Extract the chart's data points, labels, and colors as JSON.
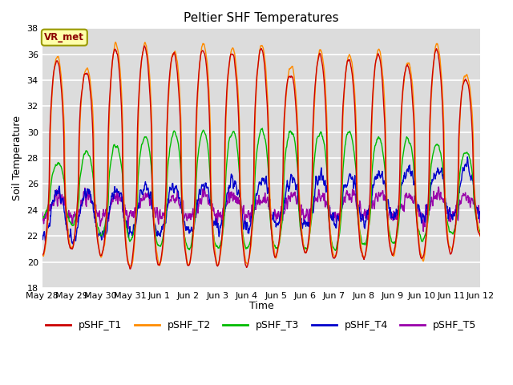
{
  "title": "Peltier SHF Temperatures",
  "ylabel": "Soil Temperature",
  "xlabel": "Time",
  "annotation": "VR_met",
  "ylim": [
    18,
    38
  ],
  "background_color": "#dcdcdc",
  "legend_labels": [
    "pSHF_T1",
    "pSHF_T2",
    "pSHF_T3",
    "pSHF_T4",
    "pSHF_T5"
  ],
  "legend_colors": [
    "#cc0000",
    "#ff8c00",
    "#00bb00",
    "#0000cc",
    "#9900aa"
  ],
  "line_colors": [
    "#cc0000",
    "#ff8c00",
    "#00bb00",
    "#0000cc",
    "#9900aa"
  ],
  "yticks": [
    18,
    20,
    22,
    24,
    26,
    28,
    30,
    32,
    34,
    36,
    38
  ],
  "xtick_labels": [
    "May 28",
    "May 29",
    "May 30",
    "May 31",
    "Jun 1",
    "Jun 2",
    "Jun 3",
    "Jun 4",
    "Jun 5",
    "Jun 6",
    "Jun 7",
    "Jun 8",
    "Jun 9",
    "Jun 10",
    "Jun 11",
    "Jun 12"
  ],
  "n_days": 15,
  "spd": 96
}
